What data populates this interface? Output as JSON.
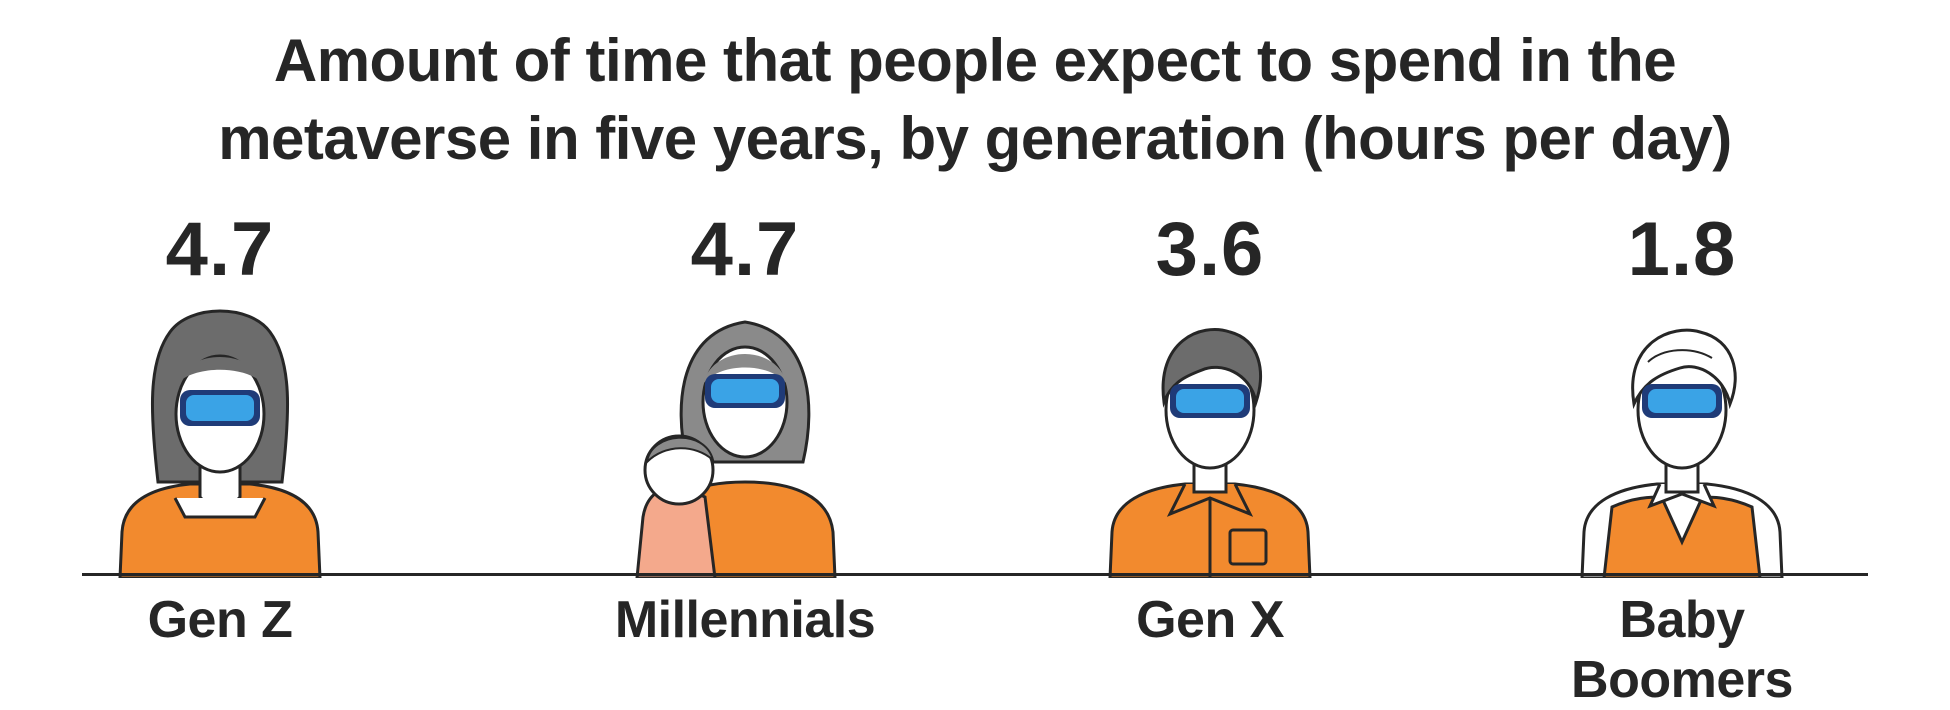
{
  "title_line1": "Amount of time that people expect to spend in the",
  "title_line2": "metaverse in five years, by generation (hours per day)",
  "chart_data": {
    "type": "bar",
    "title": "Amount of time that people expect to spend in the metaverse in five years, by generation (hours per day)",
    "categories": [
      "Gen Z",
      "Millennials",
      "Gen X",
      "Baby Boomers"
    ],
    "values": [
      4.7,
      4.7,
      3.6,
      1.8
    ],
    "value_labels": [
      "4.7",
      "4.7",
      "3.6",
      "1.8"
    ]
  },
  "colors": {
    "shirt": "#f28a2e",
    "baby": "#f4a98c",
    "goggle_frame": "#1f3b78",
    "goggle_lens": "#3aa3e6",
    "hair_dark": "#6c6c6c",
    "hair_gray": "#8a8a8a",
    "hair_white": "#ffffff",
    "text": "#262626"
  }
}
